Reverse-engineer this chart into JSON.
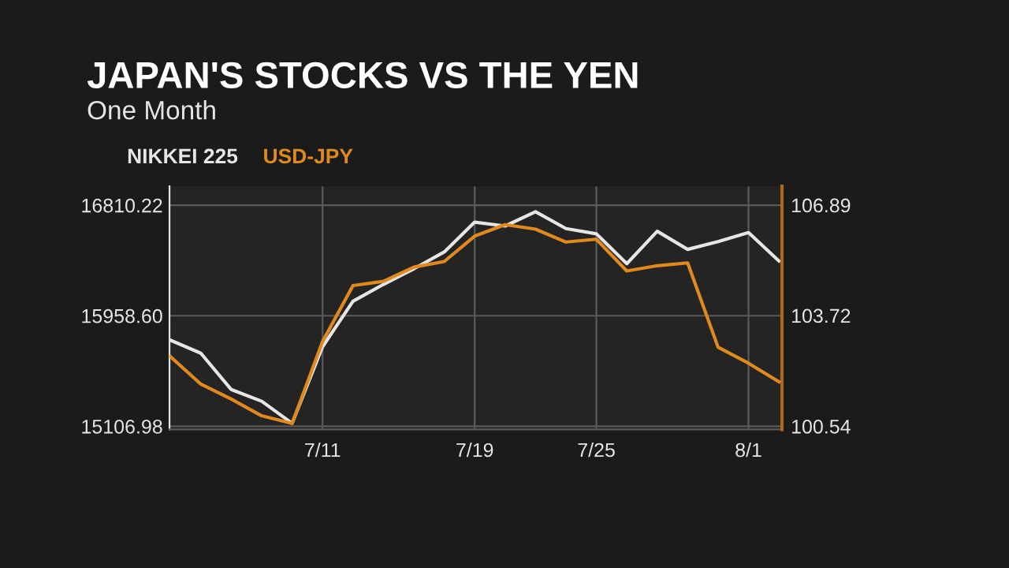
{
  "chart_data": {
    "type": "line",
    "title": "JAPAN'S STOCKS VS THE YEN",
    "subtitle": "One Month",
    "categories": [
      null,
      null,
      null,
      null,
      null,
      "7/11",
      null,
      null,
      null,
      null,
      "7/19",
      null,
      null,
      null,
      "7/25",
      null,
      null,
      null,
      null,
      "8/1",
      null
    ],
    "series": [
      {
        "name": "NIKKEI 225",
        "color": "#e6e6e6",
        "values": [
          15770,
          15670,
          15390,
          15300,
          15130,
          15720,
          16070,
          16200,
          16320,
          16450,
          16680,
          16650,
          16760,
          16630,
          16590,
          16360,
          16610,
          16470,
          16530,
          16600,
          16380
        ]
      },
      {
        "name": "USD-JPY",
        "color": "#e08a1e",
        "axis": "y2",
        "values": [
          102.54,
          101.75,
          101.32,
          100.84,
          100.62,
          102.97,
          104.58,
          104.7,
          105.11,
          105.27,
          106.0,
          106.33,
          106.2,
          105.83,
          105.91,
          105.0,
          105.15,
          105.23,
          102.81,
          102.35,
          101.82
        ]
      }
    ],
    "ylim": [
      15083,
      16956
    ],
    "yticks": [
      15106.98,
      {
        "value": 15958.6,
        "label": "15958.60"
      },
      16810.22
    ],
    "y2lim": [
      100.45,
      107.43
    ],
    "y2ticks": [
      100.54,
      103.72,
      106.89
    ],
    "grid": true,
    "legend": "top left",
    "marker": "none",
    "line_style": "solid"
  }
}
